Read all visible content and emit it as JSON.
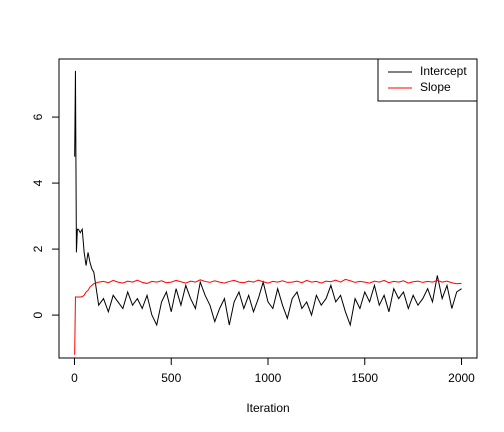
{
  "chart_data": {
    "type": "line",
    "xlabel": "Iteration",
    "x": [
      1,
      5,
      10,
      15,
      20,
      30,
      40,
      50,
      60,
      70,
      80,
      90,
      100,
      125,
      150,
      175,
      200,
      225,
      250,
      275,
      300,
      325,
      350,
      375,
      400,
      425,
      450,
      475,
      500,
      525,
      550,
      575,
      600,
      625,
      650,
      675,
      700,
      725,
      750,
      775,
      800,
      825,
      850,
      875,
      900,
      925,
      950,
      975,
      1000,
      1025,
      1050,
      1075,
      1100,
      1125,
      1150,
      1175,
      1200,
      1225,
      1250,
      1275,
      1300,
      1325,
      1350,
      1375,
      1400,
      1425,
      1450,
      1475,
      1500,
      1525,
      1550,
      1575,
      1600,
      1625,
      1650,
      1675,
      1700,
      1725,
      1750,
      1775,
      1800,
      1825,
      1850,
      1875,
      1900,
      1925,
      1950,
      1975,
      2000
    ],
    "series": [
      {
        "name": "Intercept",
        "color": "#000000",
        "values": [
          4.8,
          7.4,
          1.9,
          2.6,
          2.6,
          2.5,
          2.6,
          1.9,
          1.5,
          1.9,
          1.6,
          1.4,
          1.3,
          0.3,
          0.5,
          0.1,
          0.6,
          0.4,
          0.2,
          0.7,
          0.3,
          0.5,
          0.2,
          0.6,
          0.0,
          -0.3,
          0.4,
          0.7,
          0.1,
          0.8,
          0.3,
          0.9,
          0.5,
          0.2,
          1.0,
          0.6,
          0.3,
          -0.2,
          0.2,
          0.5,
          -0.3,
          0.4,
          0.7,
          0.2,
          0.6,
          0.1,
          0.5,
          1.0,
          0.4,
          0.2,
          0.8,
          0.3,
          -0.1,
          0.5,
          0.7,
          0.2,
          0.4,
          0.0,
          0.6,
          0.3,
          0.5,
          0.9,
          0.4,
          0.6,
          0.1,
          -0.3,
          0.5,
          0.2,
          0.7,
          0.4,
          0.9,
          0.3,
          0.6,
          0.1,
          0.8,
          0.5,
          0.7,
          0.2,
          0.6,
          0.3,
          0.5,
          0.8,
          0.4,
          1.2,
          0.5,
          0.9,
          0.2,
          0.7,
          0.8
        ]
      },
      {
        "name": "Slope",
        "color": "#ff0000",
        "values": [
          -1.2,
          0.55,
          0.55,
          0.55,
          0.55,
          0.55,
          0.56,
          0.6,
          0.7,
          0.75,
          0.85,
          0.9,
          0.95,
          1.0,
          1.02,
          0.98,
          1.05,
          1.0,
          0.97,
          1.03,
          1.0,
          1.06,
          0.99,
          0.96,
          1.02,
          1.0,
          1.04,
          0.98,
          1.0,
          1.05,
          1.01,
          0.97,
          1.03,
          1.0,
          1.07,
          1.02,
          0.99,
          1.04,
          1.0,
          0.97,
          1.02,
          1.05,
          1.0,
          0.98,
          1.03,
          1.0,
          1.06,
          1.01,
          0.97,
          1.02,
          1.0,
          1.04,
          0.99,
          1.0,
          1.03,
          0.98,
          1.05,
          1.0,
          1.02,
          0.97,
          1.03,
          1.01,
          1.06,
          1.0,
          1.08,
          1.04,
          0.99,
          1.02,
          1.0,
          0.97,
          1.03,
          1.0,
          1.05,
          0.98,
          1.02,
          1.0,
          1.04,
          0.97,
          1.01,
          1.03,
          0.99,
          1.02,
          1.0,
          1.05,
          1.0,
          1.03,
          0.98,
          0.95,
          0.96
        ]
      }
    ],
    "xlim": [
      -80,
      2080
    ],
    "xticks": [
      0,
      500,
      1000,
      1500,
      2000
    ],
    "ylim": [
      -1.3,
      7.76
    ],
    "yticks": [
      0,
      2,
      4,
      6
    ],
    "grid": false,
    "legend": "topright"
  }
}
